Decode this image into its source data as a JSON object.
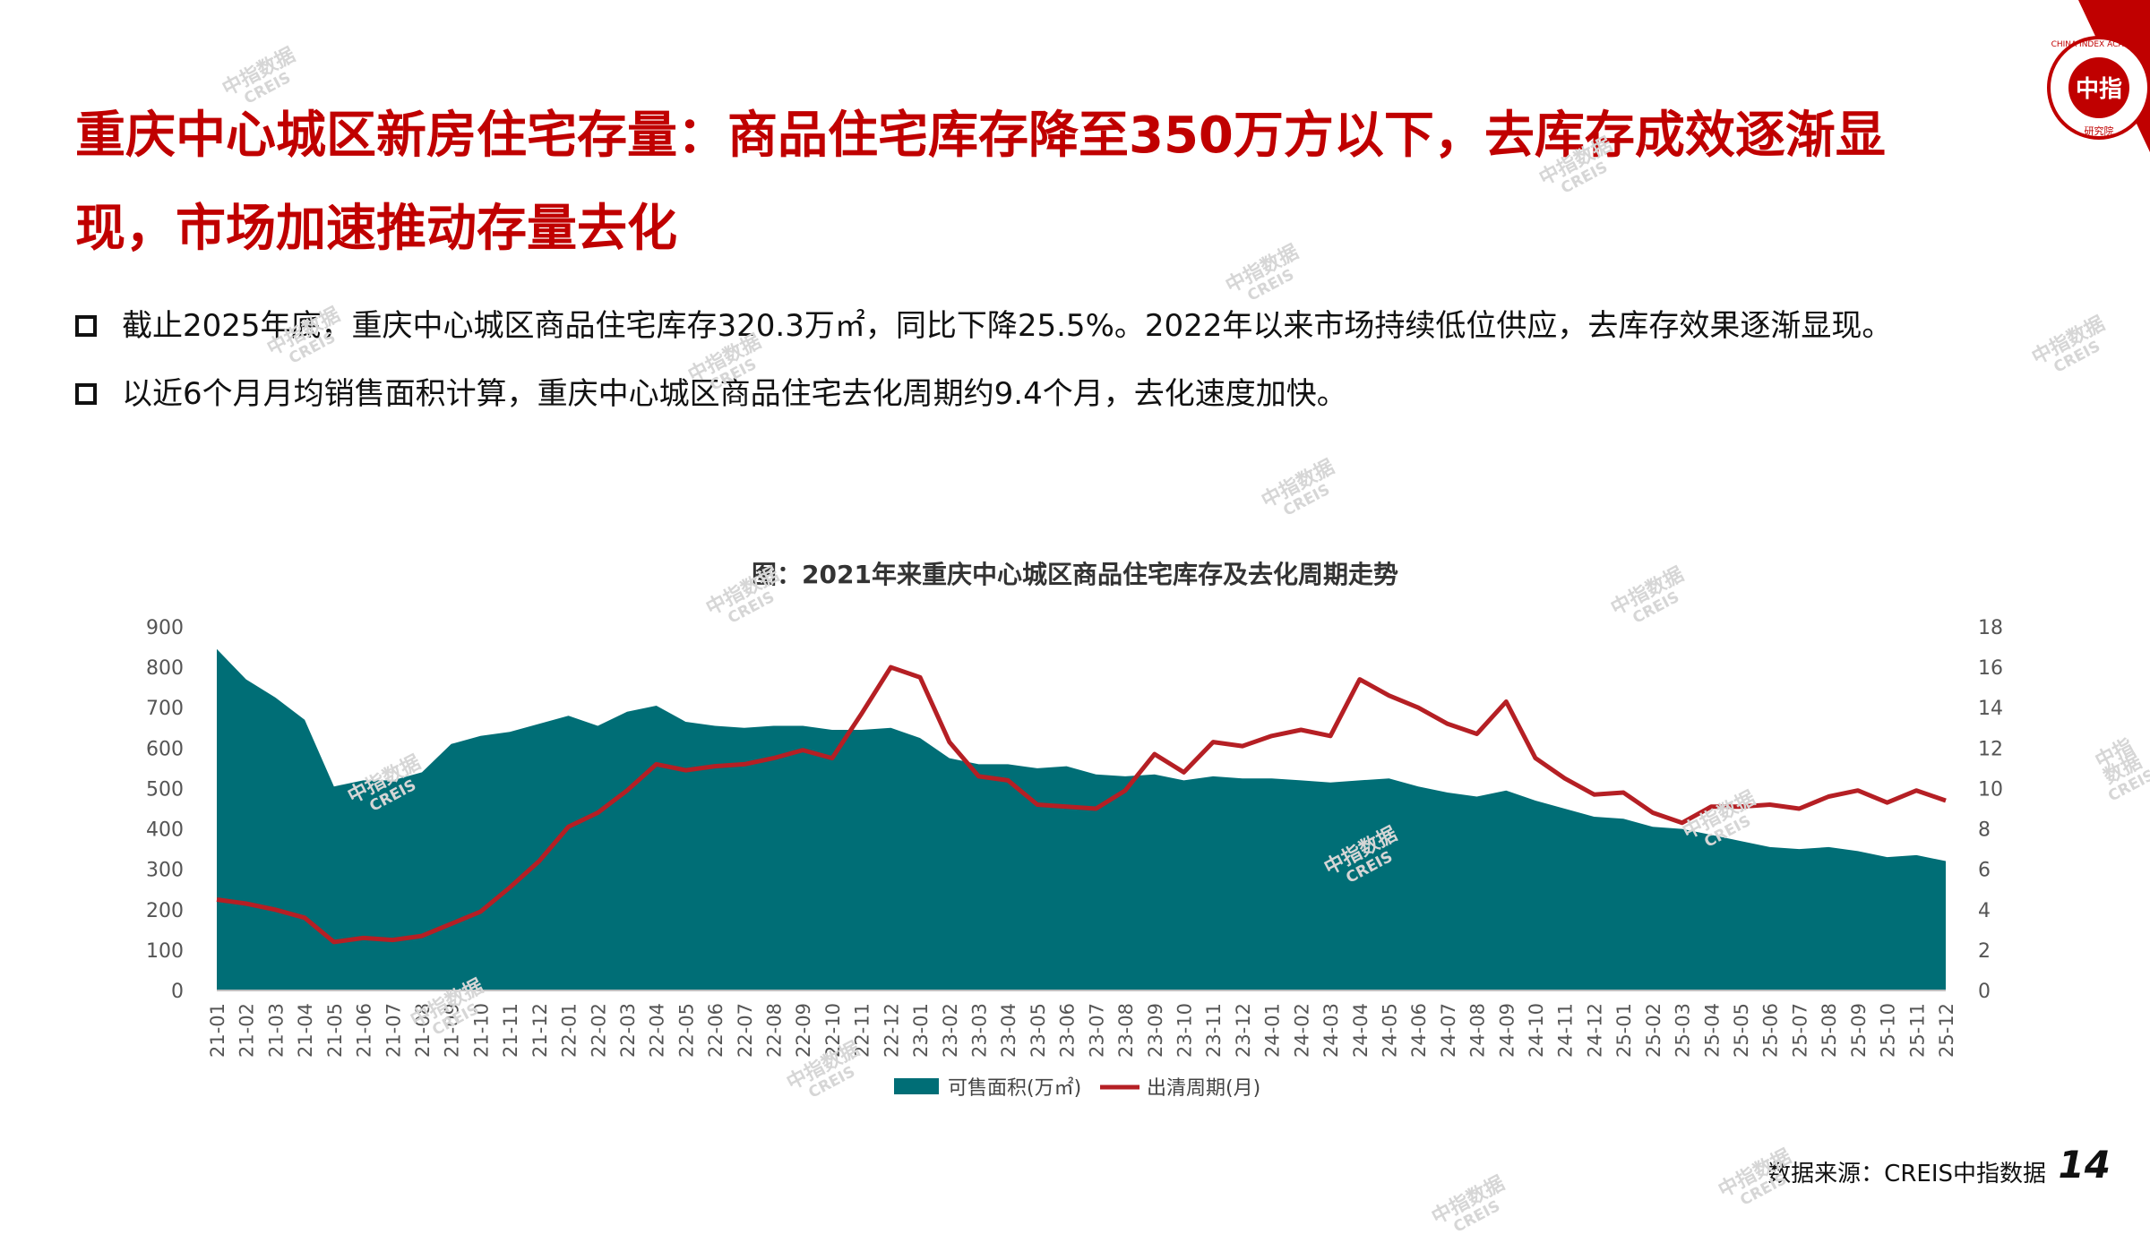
{
  "title": "重庆中心城区新房住宅存量：商品住宅库存降至350万方以下，去库存成效逐渐显现，市场加速推动存量去化",
  "bullets": [
    "截止2025年底，重庆中心城区商品住宅库存320.3万㎡，同比下降25.5%。2022年以来市场持续低位供应，去库存效果逐渐显现。",
    "以近6个月月均销售面积计算，重庆中心城区商品住宅去化周期约9.4个月，去化速度加快。"
  ],
  "chart_title": "图：2021年来重庆中心城区商品住宅库存及去化周期走势",
  "source": "数据来源：CREIS中指数据",
  "page_number": "14",
  "logo": {
    "text": "中指",
    "ring_text": "CHINA INDEX ACADEMY",
    "sub_text": "研究院"
  },
  "watermark": {
    "cn": "中指数据",
    "en": "CREIS"
  },
  "colors": {
    "accent": "#c00000",
    "area": "#006e76",
    "line": "#b51f24"
  },
  "chart_data": {
    "type": "area+line",
    "title": "图：2021年来重庆中心城区商品住宅库存及去化周期走势",
    "categories": [
      "21-01",
      "21-02",
      "21-03",
      "21-04",
      "21-05",
      "21-06",
      "21-07",
      "21-08",
      "21-09",
      "21-10",
      "21-11",
      "21-12",
      "22-01",
      "22-02",
      "22-03",
      "22-04",
      "22-05",
      "22-06",
      "22-07",
      "22-08",
      "22-09",
      "22-10",
      "22-11",
      "22-12",
      "23-01",
      "23-02",
      "23-03",
      "23-04",
      "23-05",
      "23-06",
      "23-07",
      "23-08",
      "23-09",
      "23-10",
      "23-11",
      "23-12",
      "24-01",
      "24-02",
      "24-03",
      "24-04",
      "24-05",
      "24-06",
      "24-07",
      "24-08",
      "24-09",
      "24-10",
      "24-11",
      "24-12",
      "25-01",
      "25-02",
      "25-03",
      "25-04",
      "25-05",
      "25-06",
      "25-07",
      "25-08",
      "25-09",
      "25-10",
      "25-11",
      "25-12"
    ],
    "y_left": {
      "min": 0,
      "max": 900,
      "ticks": [
        0,
        100,
        200,
        300,
        400,
        500,
        600,
        700,
        800,
        900
      ]
    },
    "y_right": {
      "min": 0,
      "max": 18,
      "ticks": [
        0,
        2,
        4,
        6,
        8,
        10,
        12,
        14,
        16,
        18
      ]
    },
    "series": [
      {
        "name": "可售面积(万㎡)",
        "type": "area",
        "axis": "left",
        "values": [
          845,
          770,
          725,
          670,
          505,
          520,
          520,
          540,
          610,
          630,
          640,
          660,
          680,
          655,
          690,
          705,
          665,
          655,
          650,
          655,
          655,
          645,
          645,
          650,
          625,
          575,
          560,
          560,
          550,
          555,
          535,
          530,
          535,
          520,
          530,
          525,
          525,
          520,
          515,
          520,
          525,
          505,
          490,
          480,
          495,
          470,
          450,
          430,
          425,
          405,
          400,
          385,
          370,
          355,
          350,
          355,
          345,
          330,
          335,
          320.3
        ]
      },
      {
        "name": "出清周期(月)",
        "type": "line",
        "axis": "right",
        "values": [
          4.5,
          4.3,
          4.0,
          3.6,
          2.4,
          2.6,
          2.5,
          2.7,
          3.3,
          3.9,
          5.1,
          6.4,
          8.1,
          8.8,
          9.9,
          11.2,
          10.9,
          11.1,
          11.2,
          11.5,
          11.9,
          11.5,
          13.7,
          16.0,
          15.5,
          12.3,
          10.6,
          10.4,
          9.2,
          9.1,
          9.0,
          9.9,
          11.7,
          10.8,
          12.3,
          12.1,
          12.6,
          12.9,
          12.6,
          15.4,
          14.6,
          14.0,
          13.2,
          12.7,
          14.3,
          11.5,
          10.5,
          9.7,
          9.8,
          8.8,
          8.3,
          9.1,
          9.1,
          9.2,
          9.0,
          9.6,
          9.9,
          9.3,
          9.9,
          9.4
        ]
      }
    ],
    "legend_position": "bottom-center",
    "grid": false
  }
}
